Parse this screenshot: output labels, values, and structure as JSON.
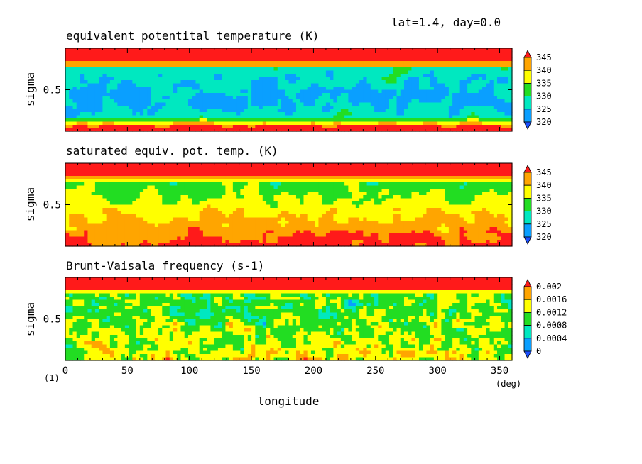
{
  "figure": {
    "header": "lat=1.4, day=0.0",
    "xlabel": "longitude",
    "xunit": "(deg)",
    "corner_label": "(1)"
  },
  "chart_data": [
    {
      "type": "heatmap",
      "title": "equivalent potentital temperature (K)",
      "xlabel": "longitude",
      "ylabel": "sigma",
      "xlim": [
        0,
        360
      ],
      "ylim": [
        1,
        0
      ],
      "xticks": [
        0,
        50,
        100,
        150,
        200,
        250,
        300,
        350
      ],
      "yticks": [
        0.5
      ],
      "levels": [
        320,
        325,
        330,
        335,
        340,
        345
      ],
      "colorbar_labels": [
        "320",
        "325",
        "330",
        "335",
        "340",
        "345"
      ],
      "colors": [
        "#1a4fff",
        "#0a9fff",
        "#00e8c0",
        "#22dd22",
        "#ffff00",
        "#ffa500",
        "#ff1a1a"
      ]
    },
    {
      "type": "heatmap",
      "title": "saturated equiv. pot. temp. (K)",
      "xlabel": "longitude",
      "ylabel": "sigma",
      "xlim": [
        0,
        360
      ],
      "ylim": [
        1,
        0
      ],
      "xticks": [
        0,
        50,
        100,
        150,
        200,
        250,
        300,
        350
      ],
      "yticks": [
        0.5
      ],
      "levels": [
        320,
        325,
        330,
        335,
        340,
        345
      ],
      "colorbar_labels": [
        "320",
        "325",
        "330",
        "335",
        "340",
        "345"
      ],
      "colors": [
        "#1a4fff",
        "#0a9fff",
        "#00e8c0",
        "#22dd22",
        "#ffff00",
        "#ffa500",
        "#ff1a1a"
      ]
    },
    {
      "type": "heatmap",
      "title": "Brunt-Vaisala frequency (s-1)",
      "xlabel": "longitude",
      "ylabel": "sigma",
      "xlim": [
        0,
        360
      ],
      "ylim": [
        1,
        0
      ],
      "xticks": [
        0,
        50,
        100,
        150,
        200,
        250,
        300,
        350
      ],
      "yticks": [
        0.5
      ],
      "levels": [
        0,
        0.0004,
        0.0008,
        0.0012,
        0.0016,
        0.002
      ],
      "colorbar_labels": [
        "0",
        "0.0004",
        "0.0008",
        "0.0012",
        "0.0016",
        "0.002"
      ],
      "colors": [
        "#1a4fff",
        "#0a9fff",
        "#00e8c0",
        "#22dd22",
        "#ffff00",
        "#ffa500",
        "#ff1a1a"
      ]
    }
  ]
}
